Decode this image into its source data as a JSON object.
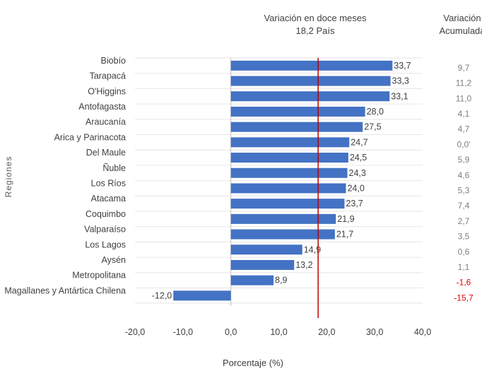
{
  "chart_data": {
    "type": "bar",
    "orientation": "horizontal",
    "header": {
      "variation_title": "Variación en doce meses",
      "variation_subtitle": "18,2 País",
      "accum_title_line1": "Variación",
      "accum_title_line2": "Acumulada"
    },
    "ylabel": "Regiones",
    "xlabel": "Porcentaje (%)",
    "xlim": [
      -20,
      40
    ],
    "xticks": [
      "-20,0",
      "-10,0",
      "0,0",
      "10,0",
      "20,0",
      "30,0",
      "40,0"
    ],
    "reference_line": {
      "value": 18.2,
      "color": "#c00000"
    },
    "bar_color": "#4472c4",
    "categories": [
      "Biobío",
      "Tarapacá",
      "O'Higgins",
      "Antofagasta",
      "Araucanía",
      "Arica y Parinacota",
      "Del Maule",
      "Ñuble",
      "Los Ríos",
      "Atacama",
      "Coquimbo",
      "Valparaíso",
      "Los Lagos",
      "Aysén",
      "Metropolitana",
      "Magallanes y Antártica Chilena"
    ],
    "values": [
      33.7,
      33.3,
      33.1,
      28.0,
      27.5,
      24.7,
      24.5,
      24.3,
      24.0,
      23.7,
      21.9,
      21.7,
      14.9,
      13.2,
      8.9,
      -12.0
    ],
    "value_labels": [
      "33,7",
      "33,3",
      "33,1",
      "28,0",
      "27,5",
      "24,7",
      "24,5",
      "24,3",
      "24,0",
      "23,7",
      "21,9",
      "21,7",
      "14,9",
      "13,2",
      "8,9",
      "-12,0"
    ],
    "accumulated": [
      "9,7",
      "11,2",
      "11,0",
      "4,1",
      "4,7",
      "0,0'",
      "5,9",
      "4,6",
      "5,3",
      "7,4",
      "2,7",
      "3,5",
      "0,6",
      "1,1",
      "-1,6",
      "-15,7"
    ],
    "accumulated_negative_color": "#e00000",
    "accumulated_color": "#7f7f7f"
  }
}
